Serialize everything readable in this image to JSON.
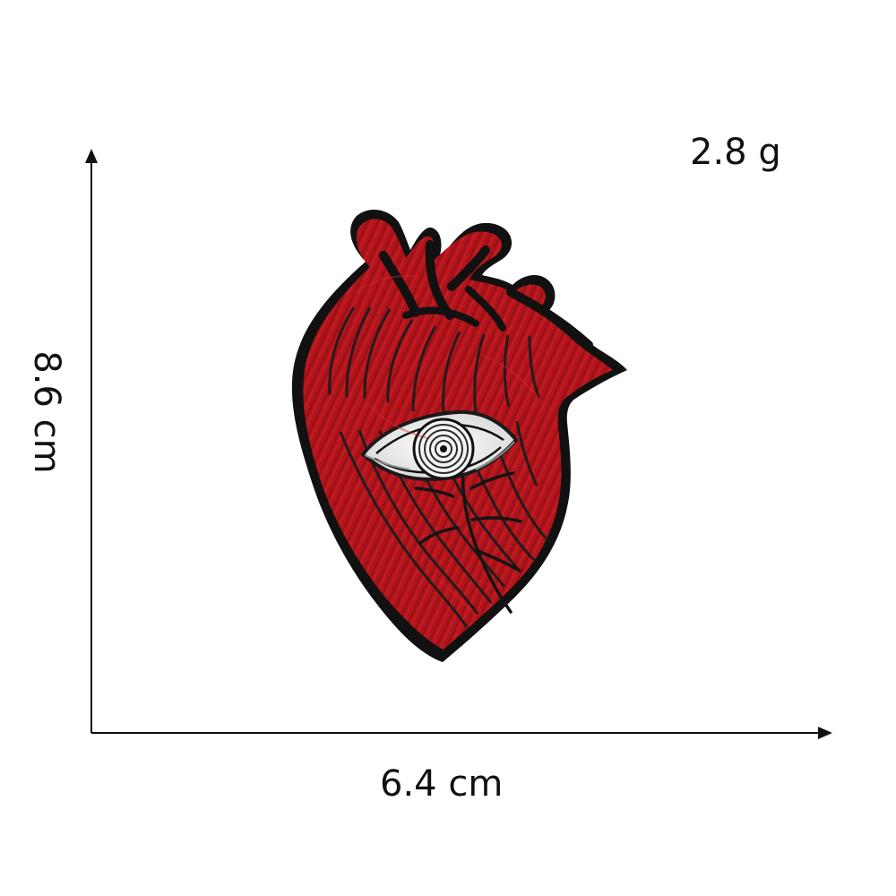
{
  "image": {
    "weight": "2.8 g",
    "height": "8.6 cm",
    "width": "6.4 cm",
    "colors": {
      "background": "#ffffff",
      "patch_red": "#b1141b",
      "patch_dark_red": "#7f0c12",
      "outline": "#111111",
      "eye_white": "#f2f2f2"
    },
    "icons": {
      "heart_patch": "anatomical-heart-eye-patch-icon",
      "eye": "eye-icon"
    }
  }
}
